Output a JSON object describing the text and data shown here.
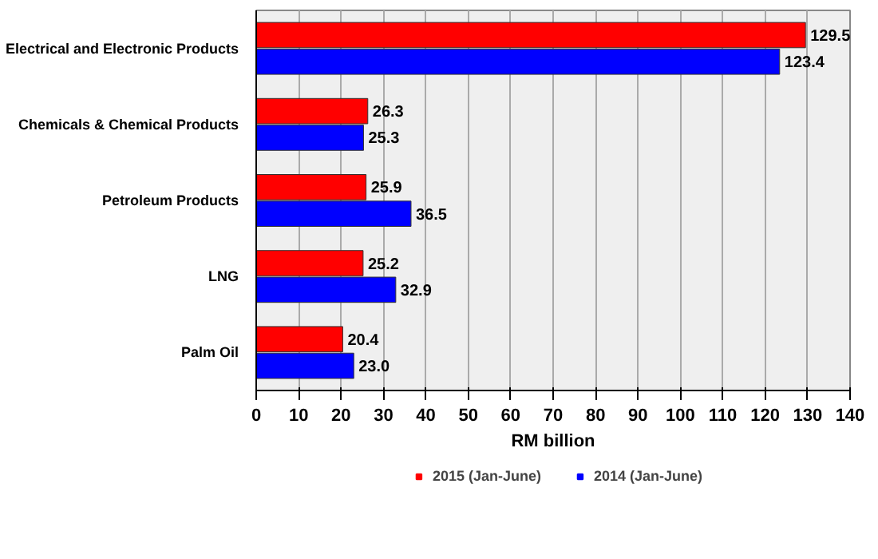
{
  "chart_data": {
    "type": "bar",
    "orientation": "horizontal",
    "xlabel": "RM billion",
    "categories": [
      "Electrical and Electronic Products",
      "Chemicals & Chemical Products",
      "Petroleum Products",
      "LNG",
      "Palm Oil"
    ],
    "series": [
      {
        "name": "2015 (Jan-June)",
        "color": "#ff0000",
        "values": [
          129.5,
          26.3,
          25.9,
          25.2,
          20.4
        ],
        "value_labels": [
          "129.5",
          "26.3",
          "25.9",
          "25.2",
          "20.4"
        ]
      },
      {
        "name": "2014 (Jan-June)",
        "color": "#0000ff",
        "values": [
          123.4,
          25.3,
          36.5,
          32.9,
          23.0
        ],
        "value_labels": [
          "123.4",
          "25.3",
          "36.5",
          "32.9",
          "23.0"
        ]
      }
    ],
    "xlim": [
      0,
      140
    ],
    "xticks": [
      0,
      10,
      20,
      30,
      40,
      50,
      60,
      70,
      80,
      90,
      100,
      110,
      120,
      130,
      140
    ],
    "grid": "x",
    "legend": "bottom"
  }
}
